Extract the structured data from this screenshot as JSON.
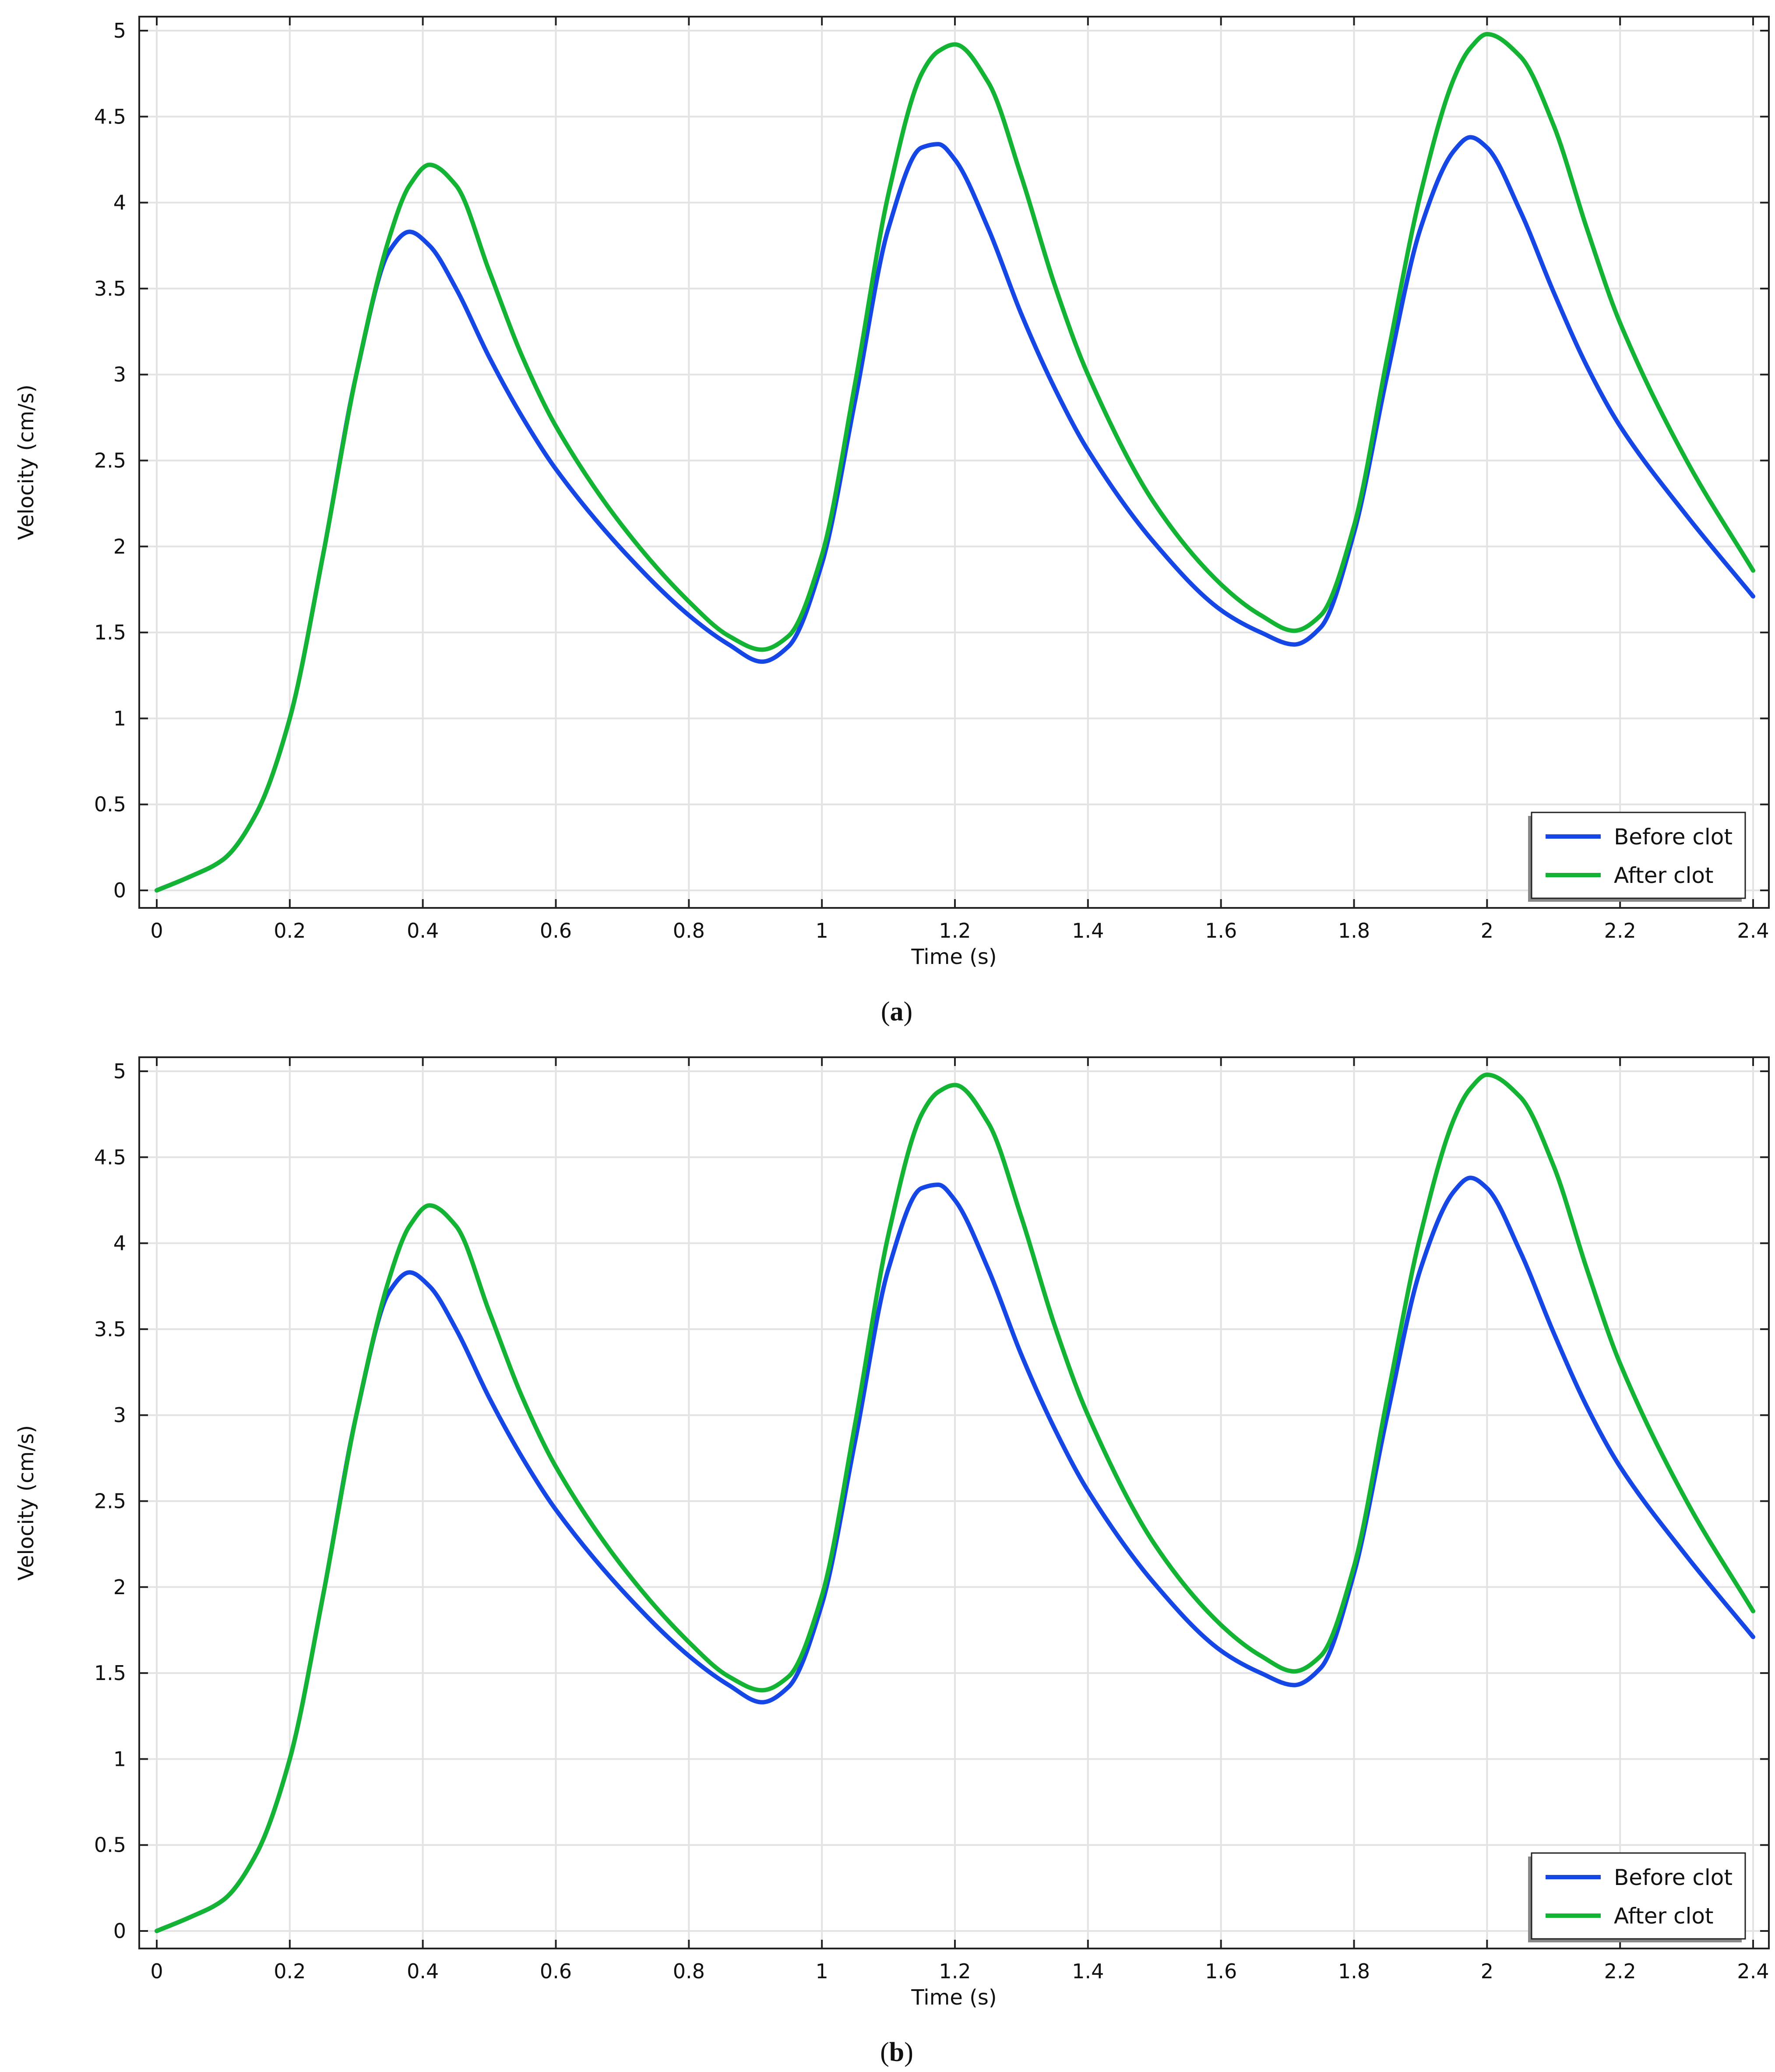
{
  "chart_data": [
    {
      "type": "line",
      "panel": "a",
      "caption": {
        "open": "(",
        "letter": "a",
        "close": ")"
      },
      "xlabel": "Time (s)",
      "ylabel": "Velocity (cm/s)",
      "xlim": [
        0,
        2.4
      ],
      "ylim": [
        0,
        5
      ],
      "xticks": [
        0,
        0.2,
        0.4,
        0.6,
        0.8,
        1,
        1.2,
        1.4,
        1.6,
        1.8,
        2,
        2.2,
        2.4
      ],
      "xtick_labels": [
        "0",
        "0.2",
        "0.4",
        "0.6",
        "0.8",
        "1",
        "1.2",
        "1.4",
        "1.6",
        "1.8",
        "2",
        "2.2",
        "2.4"
      ],
      "yticks": [
        0,
        0.5,
        1,
        1.5,
        2,
        2.5,
        3,
        3.5,
        4,
        4.5,
        5
      ],
      "ytick_labels": [
        "0",
        "0.5",
        "1",
        "1.5",
        "2",
        "2.5",
        "3",
        "3.5",
        "4",
        "4.5",
        "5"
      ],
      "grid": true,
      "legend_position": "bottom-right",
      "x": [
        0,
        0.05,
        0.1,
        0.15,
        0.2,
        0.25,
        0.3,
        0.35,
        0.38,
        0.41,
        0.45,
        0.5,
        0.55,
        0.6,
        0.7,
        0.8,
        0.86,
        0.91,
        0.95,
        1.0,
        1.05,
        1.1,
        1.15,
        1.175,
        1.2,
        1.25,
        1.3,
        1.35,
        1.4,
        1.5,
        1.6,
        1.66,
        1.71,
        1.75,
        1.8,
        1.85,
        1.9,
        1.95,
        1.975,
        2.0,
        2.05,
        2.1,
        2.15,
        2.2,
        2.3,
        2.4
      ],
      "series": [
        {
          "name": "Before clot",
          "color": "#1546e6",
          "values": [
            0,
            0.08,
            0.18,
            0.45,
            1.0,
            1.95,
            3.0,
            3.72,
            3.83,
            3.75,
            3.5,
            3.1,
            2.75,
            2.45,
            1.98,
            1.6,
            1.43,
            1.33,
            1.42,
            1.9,
            2.85,
            3.85,
            4.32,
            4.34,
            4.25,
            3.85,
            3.35,
            2.92,
            2.56,
            2.02,
            1.63,
            1.5,
            1.43,
            1.53,
            2.08,
            3.0,
            3.85,
            4.3,
            4.38,
            4.32,
            3.95,
            3.48,
            3.05,
            2.7,
            2.18,
            1.71
          ]
        },
        {
          "name": "After clot",
          "color": "#13b433",
          "values": [
            0,
            0.08,
            0.18,
            0.45,
            1.0,
            1.95,
            3.0,
            3.8,
            4.1,
            4.22,
            4.1,
            3.6,
            3.1,
            2.7,
            2.12,
            1.68,
            1.48,
            1.4,
            1.48,
            1.95,
            2.95,
            4.05,
            4.75,
            4.88,
            4.92,
            4.7,
            4.15,
            3.52,
            3.0,
            2.25,
            1.78,
            1.6,
            1.51,
            1.6,
            2.12,
            3.1,
            4.05,
            4.72,
            4.9,
            4.98,
            4.85,
            4.45,
            3.85,
            3.3,
            2.5,
            1.86
          ]
        }
      ]
    },
    {
      "type": "line",
      "panel": "b",
      "caption": {
        "open": "(",
        "letter": "b",
        "close": ")"
      },
      "xlabel": "Time (s)",
      "ylabel": "Velocity (cm/s)",
      "xlim": [
        0,
        2.4
      ],
      "ylim": [
        0,
        5
      ],
      "xticks": [
        0,
        0.2,
        0.4,
        0.6,
        0.8,
        1,
        1.2,
        1.4,
        1.6,
        1.8,
        2,
        2.2,
        2.4
      ],
      "xtick_labels": [
        "0",
        "0.2",
        "0.4",
        "0.6",
        "0.8",
        "1",
        "1.2",
        "1.4",
        "1.6",
        "1.8",
        "2",
        "2.2",
        "2.4"
      ],
      "yticks": [
        0,
        0.5,
        1,
        1.5,
        2,
        2.5,
        3,
        3.5,
        4,
        4.5,
        5
      ],
      "ytick_labels": [
        "0",
        "0.5",
        "1",
        "1.5",
        "2",
        "2.5",
        "3",
        "3.5",
        "4",
        "4.5",
        "5"
      ],
      "grid": true,
      "legend_position": "bottom-right",
      "x": [
        0,
        0.05,
        0.1,
        0.15,
        0.2,
        0.25,
        0.3,
        0.35,
        0.38,
        0.41,
        0.45,
        0.5,
        0.55,
        0.6,
        0.7,
        0.8,
        0.86,
        0.91,
        0.95,
        1.0,
        1.05,
        1.1,
        1.15,
        1.175,
        1.2,
        1.25,
        1.3,
        1.35,
        1.4,
        1.5,
        1.6,
        1.66,
        1.71,
        1.75,
        1.8,
        1.85,
        1.9,
        1.95,
        1.975,
        2.0,
        2.05,
        2.1,
        2.15,
        2.2,
        2.3,
        2.4
      ],
      "series": [
        {
          "name": "Before clot",
          "color": "#1546e6",
          "values": [
            0,
            0.08,
            0.18,
            0.45,
            1.0,
            1.95,
            3.0,
            3.72,
            3.83,
            3.75,
            3.5,
            3.1,
            2.75,
            2.45,
            1.98,
            1.6,
            1.43,
            1.33,
            1.42,
            1.9,
            2.85,
            3.85,
            4.32,
            4.34,
            4.25,
            3.85,
            3.35,
            2.92,
            2.56,
            2.02,
            1.63,
            1.5,
            1.43,
            1.53,
            2.08,
            3.0,
            3.85,
            4.3,
            4.38,
            4.32,
            3.95,
            3.48,
            3.05,
            2.7,
            2.18,
            1.71
          ]
        },
        {
          "name": "After clot",
          "color": "#13b433",
          "values": [
            0,
            0.08,
            0.18,
            0.45,
            1.0,
            1.95,
            3.0,
            3.8,
            4.1,
            4.22,
            4.1,
            3.6,
            3.1,
            2.7,
            2.12,
            1.68,
            1.48,
            1.4,
            1.48,
            1.95,
            2.95,
            4.05,
            4.75,
            4.88,
            4.92,
            4.7,
            4.15,
            3.52,
            3.0,
            2.25,
            1.78,
            1.6,
            1.51,
            1.6,
            2.12,
            3.1,
            4.05,
            4.72,
            4.9,
            4.98,
            4.85,
            4.45,
            3.85,
            3.3,
            2.5,
            1.86
          ]
        }
      ]
    }
  ]
}
